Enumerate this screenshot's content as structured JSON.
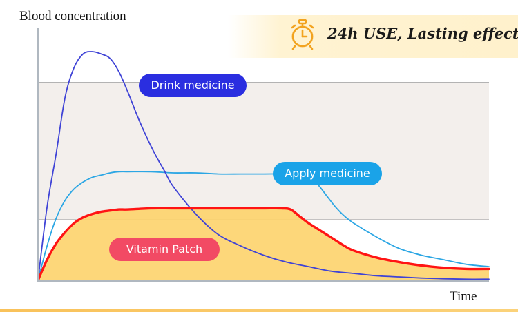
{
  "banner": {
    "text": "24h USE, Lasting effect",
    "icon": "alarm-clock-icon"
  },
  "chart_data": {
    "type": "line",
    "xlabel": "Time",
    "ylabel": "Blood concentration",
    "xlim": [
      0,
      100
    ],
    "ylim": [
      0,
      100
    ],
    "grid": false,
    "effective_range": [
      26.5,
      86.5
    ],
    "series": [
      {
        "name": "Drink medicine",
        "color": "#3f43d6",
        "x": [
          0,
          2,
          4,
          6,
          8,
          10,
          12,
          14,
          16,
          18,
          20,
          22,
          24,
          26,
          28,
          30,
          35,
          40,
          45,
          50,
          55,
          60,
          65,
          70,
          75,
          80,
          85,
          90,
          95,
          100
        ],
        "y": [
          0,
          32,
          55,
          80,
          93,
          99,
          100,
          99,
          97,
          91,
          82,
          72,
          63,
          55,
          48,
          41,
          29,
          20,
          15,
          11,
          8,
          6,
          4,
          3,
          2,
          1.5,
          1,
          0.7,
          0.5,
          0.5
        ]
      },
      {
        "name": "Apply medicine",
        "color": "#2ba6e4",
        "x": [
          0,
          2,
          4,
          6,
          8,
          10,
          12,
          14,
          16,
          18,
          20,
          25,
          30,
          35,
          40,
          45,
          50,
          55,
          58,
          60,
          62,
          64,
          66,
          68,
          70,
          75,
          80,
          85,
          90,
          95,
          100
        ],
        "y": [
          0,
          15,
          27,
          35,
          40,
          43,
          45,
          46,
          47,
          47.5,
          47.5,
          47.5,
          47,
          47,
          46.5,
          46.5,
          46.5,
          46.5,
          46,
          45,
          42,
          37,
          32,
          28,
          25,
          19,
          14,
          11,
          9,
          7,
          6
        ]
      },
      {
        "name": "Vitamin Patch",
        "color": "#ff1414",
        "x": [
          0,
          2,
          4,
          6,
          8,
          10,
          12,
          14,
          16,
          18,
          20,
          25,
          30,
          35,
          40,
          45,
          50,
          54,
          56,
          58,
          60,
          62,
          64,
          66,
          68,
          70,
          75,
          80,
          85,
          90,
          95,
          100
        ],
        "y": [
          0,
          9,
          16,
          21,
          25,
          27.5,
          29,
          30,
          30.5,
          31,
          31,
          31.5,
          31.5,
          31.5,
          31.5,
          31.5,
          31.5,
          31.5,
          31,
          28,
          25,
          22.5,
          20,
          17.5,
          15,
          13,
          10,
          8,
          6.5,
          5.5,
          5,
          5
        ]
      }
    ]
  },
  "labels": {
    "drink": {
      "text": "Drink medicine",
      "color": "#2a2ee0"
    },
    "apply": {
      "text": "Apply medicine",
      "color": "#1aa3e8"
    },
    "patch": {
      "text": "Vitamin Patch",
      "color": "#f24a64"
    }
  },
  "colors": {
    "band_fill": "#f3efec",
    "band_line": "#a8a8a8",
    "area_fill": "#fdd36c",
    "axis": "#b0b8c0"
  }
}
